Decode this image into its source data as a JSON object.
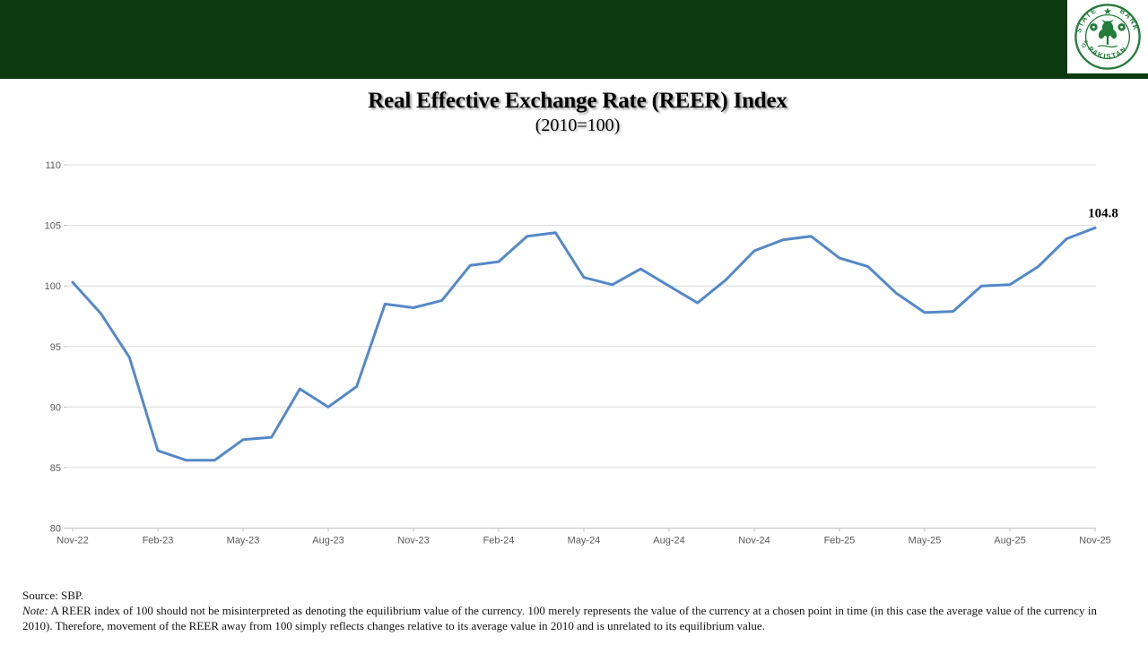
{
  "header": {
    "logo_text_top": "STATE BANK",
    "logo_text_of": "OF",
    "logo_text_bottom": "PAKISTAN",
    "bar_color": "#0c390f"
  },
  "title": "Real Effective Exchange Rate (REER) Index",
  "subtitle": "(2010=100)",
  "chart_data": {
    "type": "line",
    "title": "Real Effective Exchange Rate (REER) Index",
    "subtitle": "(2010=100)",
    "series_name": "REER Index",
    "categories": [
      "Nov-22",
      "Dec-22",
      "Jan-23",
      "Feb-23",
      "Mar-23",
      "Apr-23",
      "May-23",
      "Jun-23",
      "Jul-23",
      "Aug-23",
      "Sep-23",
      "Oct-23",
      "Nov-23",
      "Dec-23",
      "Jan-24",
      "Feb-24",
      "Mar-24",
      "Apr-24",
      "May-24",
      "Jun-24",
      "Jul-24",
      "Aug-24",
      "Sep-24",
      "Oct-24",
      "Nov-24",
      "Dec-24",
      "Jan-25",
      "Feb-25",
      "Mar-25",
      "Apr-25",
      "May-25",
      "Jun-25",
      "Jul-25",
      "Aug-25",
      "Sep-25",
      "Oct-25",
      "Nov-25"
    ],
    "values": [
      100.3,
      97.7,
      94.1,
      86.4,
      85.6,
      85.6,
      87.3,
      87.5,
      91.5,
      90.0,
      91.7,
      98.5,
      98.2,
      98.8,
      101.7,
      102.0,
      104.1,
      104.4,
      100.7,
      100.1,
      101.4,
      100.0,
      98.6,
      100.5,
      102.9,
      103.8,
      104.1,
      102.3,
      101.6,
      99.4,
      97.8,
      97.9,
      100.0,
      100.1,
      101.6,
      103.9,
      104.8
    ],
    "x_tick_labels": [
      "Nov-22",
      "Feb-23",
      "May-23",
      "Aug-23",
      "Nov-23",
      "Feb-24",
      "May-24",
      "Aug-24",
      "Nov-24",
      "Feb-25",
      "May-25",
      "Aug-25",
      "Nov-25"
    ],
    "x_tick_every": 3,
    "y_ticks": [
      80,
      85,
      90,
      95,
      100,
      105,
      110
    ],
    "ylim": [
      80,
      110
    ],
    "grid": "horizontal",
    "legend": "none",
    "line_color": "#5489c8",
    "gridline_color": "#d9d9d9",
    "axis_color": "#bfbfbf",
    "tick_label_color": "#595959",
    "last_point_label": "104.8"
  },
  "footer": {
    "source": "Source: SBP.",
    "note_label": "Note:",
    "note_text": " A REER index of 100 should not be misinterpreted  as denoting  the equilibrium  value of the currency.  100 merely represents  the value of the currency  at a chosen point in time (in this case the average value of the currency  in 2010).  Therefore,  movement  of the REER away from 100 simply reflects  changes  relative  to its average  value in 2010  and is unrelated   to its equilibrium  value."
  }
}
